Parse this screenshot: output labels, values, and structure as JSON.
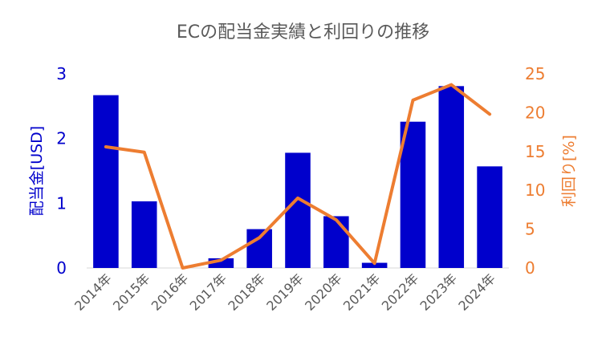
{
  "chart_data": {
    "type": "bar",
    "title": "ECの配当金実績と利回りの推移",
    "categories": [
      "2014年",
      "2015年",
      "2016年",
      "2017年",
      "2018年",
      "2019年",
      "2020年",
      "2021年",
      "2022年",
      "2023年",
      "2024年"
    ],
    "series": [
      {
        "name": "配当金",
        "type": "bar",
        "axis": "left",
        "color": "#0000CC",
        "values": [
          2.67,
          1.03,
          0.0,
          0.15,
          0.6,
          1.78,
          0.8,
          0.08,
          2.26,
          2.81,
          1.57
        ]
      },
      {
        "name": "利回り",
        "type": "line",
        "axis": "right",
        "color": "#ED7D31",
        "values": [
          15.6,
          14.9,
          0.0,
          1.0,
          3.9,
          9.0,
          6.2,
          0.6,
          21.6,
          23.6,
          19.8
        ]
      }
    ],
    "ylabel": "配当金[USD]",
    "ylabel_right": "利回り[%]",
    "ylim": [
      0,
      3
    ],
    "ylim_right": [
      0,
      25
    ],
    "yticks": [
      "0",
      "1",
      "2",
      "3"
    ],
    "yticks_right": [
      "0",
      "5",
      "10",
      "15",
      "20",
      "25"
    ],
    "grid": false,
    "legend": "none",
    "left_axis_color": "#0000CC",
    "right_axis_color": "#ED7D31"
  }
}
